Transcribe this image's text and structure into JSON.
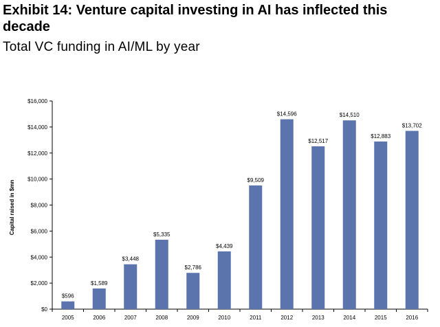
{
  "header": {
    "title": "Exhibit 14: Venture capital investing in AI has inflected this decade",
    "subtitle": "Total VC funding in AI/ML by year"
  },
  "chart_data": {
    "type": "bar",
    "categories": [
      "2005",
      "2006",
      "2007",
      "2008",
      "2009",
      "2010",
      "2011",
      "2012",
      "2013",
      "2014",
      "2015",
      "2016"
    ],
    "values": [
      596,
      1589,
      3448,
      5335,
      2786,
      4439,
      9509,
      14596,
      12517,
      14510,
      12883,
      13702
    ],
    "data_labels": [
      "$596",
      "$1,589",
      "$3,448",
      "$5,335",
      "$2,786",
      "$4,439",
      "$9,509",
      "$14,596",
      "$12,517",
      "$14,510",
      "$12,883",
      "$13,702"
    ],
    "ylabel": "Capital raised in $mn",
    "xlabel": "",
    "ylim": [
      0,
      16000
    ],
    "yticks": [
      0,
      2000,
      4000,
      6000,
      8000,
      10000,
      12000,
      14000,
      16000
    ],
    "ytick_labels": [
      "$0",
      "$2,000",
      "$4,000",
      "$6,000",
      "$8,000",
      "$10,000",
      "$12,000",
      "$14,000",
      "$16,000"
    ],
    "bar_color": "#5B74AE",
    "grid": false,
    "legend": "none"
  }
}
